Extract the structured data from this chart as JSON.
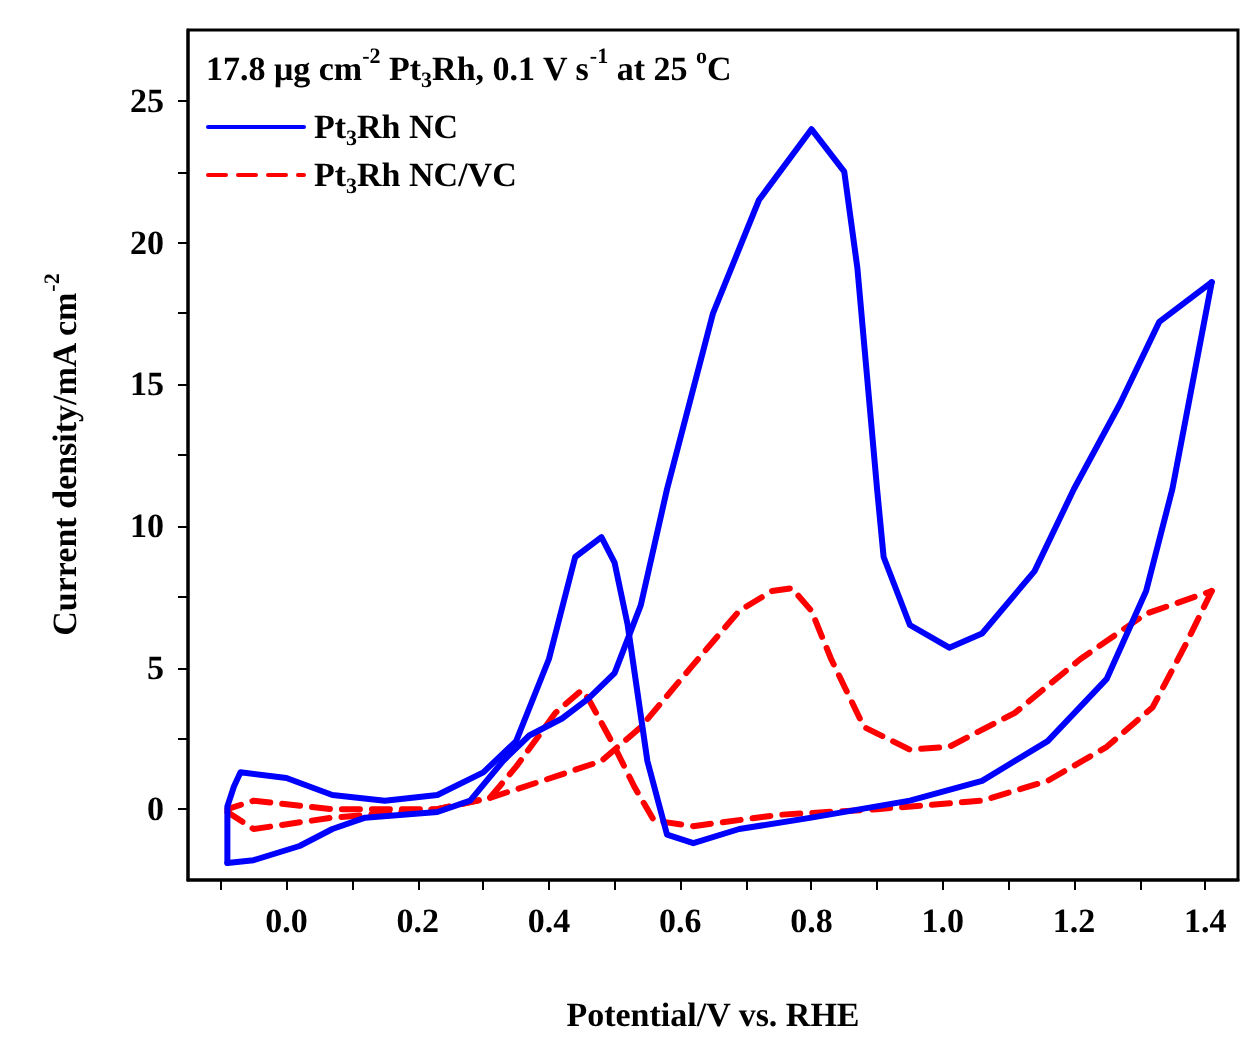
{
  "chart_data": {
    "type": "line",
    "title": "17.8 μg cm$^{-2}$ Pt$_{3}$Rh, 0.1 V s$^{-1}$ at 25 $^{o}$C",
    "xlabel": "Potential/V vs. RHE",
    "ylabel": "Current density/mA cm$^{-2}$",
    "xlim": [
      -0.15,
      1.45
    ],
    "ylim": [
      -2.5,
      27.5
    ],
    "xticks": [
      {
        "value": -0.1,
        "label": null
      },
      {
        "value": 0,
        "label": "0.0"
      },
      {
        "value": 0.1,
        "label": null
      },
      {
        "value": 0.2,
        "label": "0.2"
      },
      {
        "value": 0.3,
        "label": null
      },
      {
        "value": 0.4,
        "label": "0.4"
      },
      {
        "value": 0.5,
        "label": null
      },
      {
        "value": 0.6,
        "label": "0.6"
      },
      {
        "value": 0.7,
        "label": null
      },
      {
        "value": 0.8,
        "label": "0.8"
      },
      {
        "value": 0.9,
        "label": null
      },
      {
        "value": 1.0,
        "label": "1.0"
      },
      {
        "value": 1.1,
        "label": null
      },
      {
        "value": 1.2,
        "label": "1.2"
      },
      {
        "value": 1.3,
        "label": null
      },
      {
        "value": 1.4,
        "label": "1.4"
      }
    ],
    "yticks": [
      0,
      {
        "value": 2.5,
        "label": null
      },
      5,
      {
        "value": 7.5,
        "label": null
      },
      10,
      {
        "value": 12.5,
        "label": null
      },
      15,
      {
        "value": 17.5,
        "label": null
      },
      20,
      {
        "value": 22.5,
        "label": null
      },
      25
    ],
    "legend": "top left",
    "grid": false,
    "series": [
      {
        "name": "Pt$_{3}$Rh NC",
        "color": "#0000ff",
        "line_style": "solid",
        "x": [
          -0.09,
          -0.05,
          0.02,
          0.07,
          0.12,
          0.23,
          0.28,
          0.33,
          0.37,
          0.42,
          0.46,
          0.5,
          0.54,
          0.58,
          0.65,
          0.72,
          0.8,
          0.85,
          0.87,
          0.9,
          0.91,
          0.95,
          1.01,
          1.06,
          1.14,
          1.2,
          1.27,
          1.33,
          1.41
        ],
        "values": [
          -1.9,
          -1.8,
          -1.3,
          -0.7,
          -0.3,
          -0.1,
          0.3,
          1.7,
          2.6,
          3.2,
          3.9,
          4.8,
          7.2,
          11.3,
          17.5,
          21.5,
          24.0,
          22.5,
          19.1,
          11.3,
          8.9,
          6.5,
          5.7,
          6.2,
          8.4,
          11.3,
          14.3,
          17.2,
          18.6
        ]
      },
      {
        "color": "#0000ff",
        "line_style": "solid",
        "x": [
          1.41,
          1.35,
          1.31,
          1.25,
          1.16,
          1.06,
          0.95,
          0.8,
          0.69,
          0.62,
          0.58,
          0.55,
          0.52,
          0.5,
          0.48,
          0.44,
          0.4,
          0.35,
          0.3,
          0.23,
          0.15,
          0.07,
          0.0,
          -0.07,
          -0.08,
          -0.09,
          -0.09
        ],
        "values": [
          18.6,
          11.3,
          7.7,
          4.6,
          2.4,
          1.0,
          0.3,
          -0.3,
          -0.7,
          -1.2,
          -0.9,
          1.7,
          6.5,
          8.7,
          9.6,
          8.9,
          5.3,
          2.4,
          1.3,
          0.5,
          0.3,
          0.5,
          1.1,
          1.3,
          0.8,
          0.1,
          -1.9
        ]
      },
      {
        "name": "Pt$_{3}$Rh NC/VC",
        "color": "#ff0000",
        "line_style": "dashed",
        "x": [
          -0.09,
          -0.05,
          0.07,
          0.23,
          0.31,
          0.39,
          0.48,
          0.54,
          0.62,
          0.69,
          0.74,
          0.77,
          0.8,
          0.83,
          0.88,
          0.95,
          1.01,
          1.11,
          1.21,
          1.31,
          1.41
        ],
        "values": [
          -0.1,
          -0.7,
          -0.3,
          0.0,
          0.4,
          1.0,
          1.7,
          2.9,
          5.1,
          7.0,
          7.7,
          7.8,
          7.0,
          5.3,
          2.9,
          2.1,
          2.2,
          3.4,
          5.3,
          6.9,
          7.7
        ]
      },
      {
        "color": "#ff0000",
        "line_style": "dashed",
        "x": [
          1.41,
          1.37,
          1.32,
          1.25,
          1.16,
          1.06,
          0.9,
          0.75,
          0.62,
          0.56,
          0.53,
          0.5,
          0.46,
          0.45,
          0.41,
          0.35,
          0.31,
          0.23,
          0.07,
          -0.05,
          -0.09
        ],
        "values": [
          7.7,
          5.8,
          3.6,
          2.2,
          1.0,
          0.3,
          0.0,
          -0.2,
          -0.6,
          -0.4,
          0.8,
          2.2,
          3.9,
          4.2,
          3.4,
          1.5,
          0.4,
          0.0,
          0.0,
          0.3,
          0.0
        ]
      }
    ]
  }
}
